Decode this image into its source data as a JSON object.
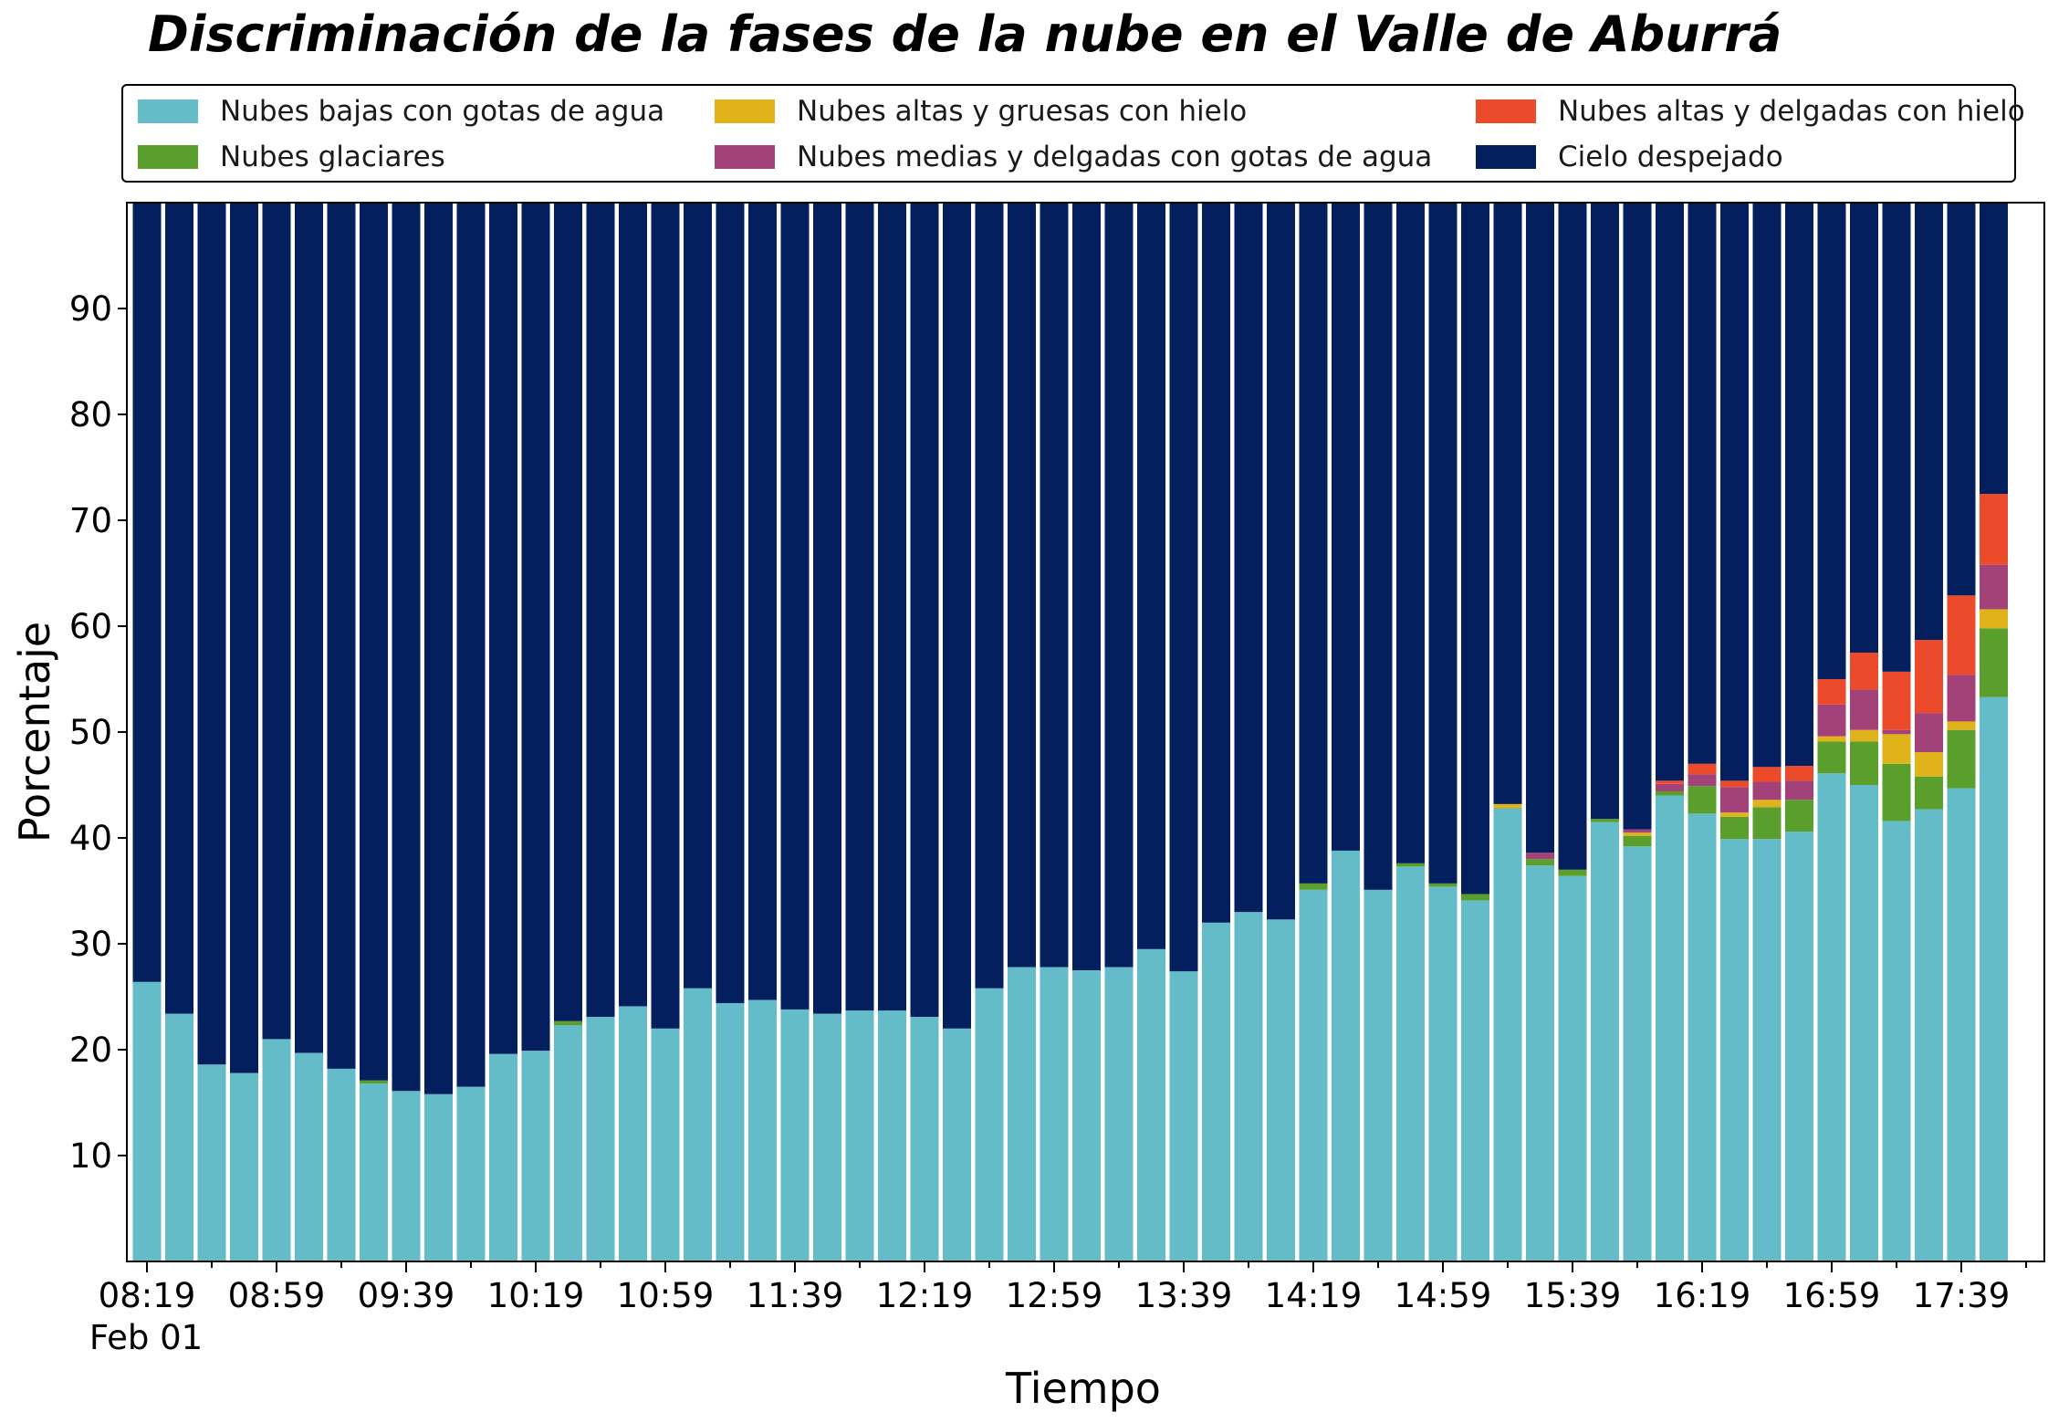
{
  "chart_data": {
    "type": "bar",
    "stacked": true,
    "title": "Discriminación de la fases de la nube en el Valle de Aburrá",
    "xlabel": "Tiempo",
    "ylabel": "Porcentaje",
    "ylim": [
      0,
      100
    ],
    "yticks": [
      10,
      20,
      30,
      40,
      50,
      60,
      70,
      80,
      90
    ],
    "xtick_labels": [
      "08:19",
      "08:59",
      "09:39",
      "10:19",
      "10:59",
      "11:39",
      "12:19",
      "12:59",
      "13:39",
      "14:19",
      "14:59",
      "15:39",
      "16:19",
      "16:59",
      "17:39"
    ],
    "xtick_sublabel": "Feb 01",
    "legend_position": "top",
    "grid": false,
    "categories": [
      "08:19",
      "08:29",
      "08:39",
      "08:49",
      "08:59",
      "09:09",
      "09:19",
      "09:29",
      "09:39",
      "09:49",
      "09:59",
      "10:09",
      "10:19",
      "10:29",
      "10:39",
      "10:49",
      "10:59",
      "11:09",
      "11:19",
      "11:29",
      "11:39",
      "11:49",
      "11:59",
      "12:09",
      "12:19",
      "12:29",
      "12:39",
      "12:49",
      "12:59",
      "13:09",
      "13:19",
      "13:29",
      "13:39",
      "13:49",
      "13:59",
      "14:09",
      "14:19",
      "14:29",
      "14:39",
      "14:49",
      "14:59",
      "15:09",
      "15:19",
      "15:29",
      "15:39",
      "15:49",
      "15:59",
      "16:09",
      "16:19",
      "16:29",
      "16:39",
      "16:49",
      "16:59",
      "17:09",
      "17:19",
      "17:29",
      "17:39",
      "17:49"
    ],
    "series": [
      {
        "name": "Nubes bajas con gotas de agua",
        "color": "#63bcc8",
        "values": [
          26.4,
          23.4,
          18.6,
          17.8,
          21.0,
          19.7,
          18.2,
          16.8,
          16.1,
          15.8,
          16.5,
          19.6,
          19.9,
          22.3,
          23.1,
          24.1,
          22.0,
          25.8,
          24.4,
          24.7,
          23.8,
          23.4,
          23.7,
          23.7,
          23.1,
          22.0,
          25.8,
          27.8,
          27.8,
          27.5,
          27.8,
          29.5,
          27.4,
          32.0,
          33.0,
          32.3,
          35.1,
          38.8,
          35.1,
          37.3,
          35.4,
          34.1,
          42.8,
          37.4,
          36.4,
          41.5,
          39.2,
          44.0,
          42.3,
          39.9,
          39.9,
          40.6,
          46.1,
          45.0,
          41.6,
          42.7,
          44.7,
          53.3
        ]
      },
      {
        "name": "Nubes glaciares",
        "color": "#5a9e2c",
        "values": [
          0,
          0,
          0,
          0,
          0,
          0,
          0,
          0.3,
          0,
          0,
          0,
          0,
          0,
          0.4,
          0,
          0,
          0,
          0,
          0,
          0,
          0,
          0,
          0,
          0,
          0,
          0,
          0,
          0,
          0,
          0,
          0,
          0,
          0,
          0,
          0,
          0,
          0.6,
          0,
          0,
          0.3,
          0.3,
          0.6,
          0,
          0.6,
          0.6,
          0.3,
          1.0,
          0.4,
          2.6,
          2.1,
          3.0,
          3.0,
          3.0,
          4.1,
          5.4,
          3.1,
          5.5,
          6.5
        ]
      },
      {
        "name": "Nubes altas y gruesas con hielo",
        "color": "#e0b31a",
        "values": [
          0,
          0,
          0,
          0,
          0,
          0,
          0,
          0,
          0,
          0,
          0,
          0,
          0,
          0,
          0,
          0,
          0,
          0,
          0,
          0,
          0,
          0,
          0,
          0,
          0,
          0,
          0,
          0,
          0,
          0,
          0,
          0,
          0,
          0,
          0,
          0,
          0,
          0,
          0,
          0,
          0,
          0,
          0.4,
          0,
          0,
          0,
          0.3,
          0,
          0,
          0.4,
          0.7,
          0,
          0.5,
          1.1,
          2.8,
          2.3,
          0.8,
          1.8
        ]
      },
      {
        "name": "Nubes medias y delgadas con gotas de agua",
        "color": "#a34179",
        "values": [
          0,
          0,
          0,
          0,
          0,
          0,
          0,
          0,
          0,
          0,
          0,
          0,
          0,
          0,
          0,
          0,
          0,
          0,
          0,
          0,
          0,
          0,
          0,
          0,
          0,
          0,
          0,
          0,
          0,
          0,
          0,
          0,
          0,
          0,
          0,
          0,
          0,
          0,
          0,
          0,
          0,
          0,
          0,
          0.6,
          0,
          0,
          0.3,
          0.7,
          1.1,
          2.4,
          1.7,
          1.8,
          3.0,
          3.8,
          0.4,
          3.7,
          4.4,
          4.2
        ]
      },
      {
        "name": "Nubes altas y delgadas con hielo",
        "color": "#eb4a2b",
        "values": [
          0,
          0,
          0,
          0,
          0,
          0,
          0,
          0,
          0,
          0,
          0,
          0,
          0,
          0,
          0,
          0,
          0,
          0,
          0,
          0,
          0,
          0,
          0,
          0,
          0,
          0,
          0,
          0,
          0,
          0,
          0,
          0,
          0,
          0,
          0,
          0,
          0,
          0,
          0,
          0,
          0,
          0,
          0,
          0,
          0,
          0,
          0,
          0.3,
          1.0,
          0.6,
          1.4,
          1.4,
          2.4,
          3.5,
          5.5,
          6.9,
          7.5,
          6.7
        ]
      },
      {
        "name": "Cielo despejado",
        "color": "#031f5e",
        "values": "remainder"
      }
    ]
  }
}
